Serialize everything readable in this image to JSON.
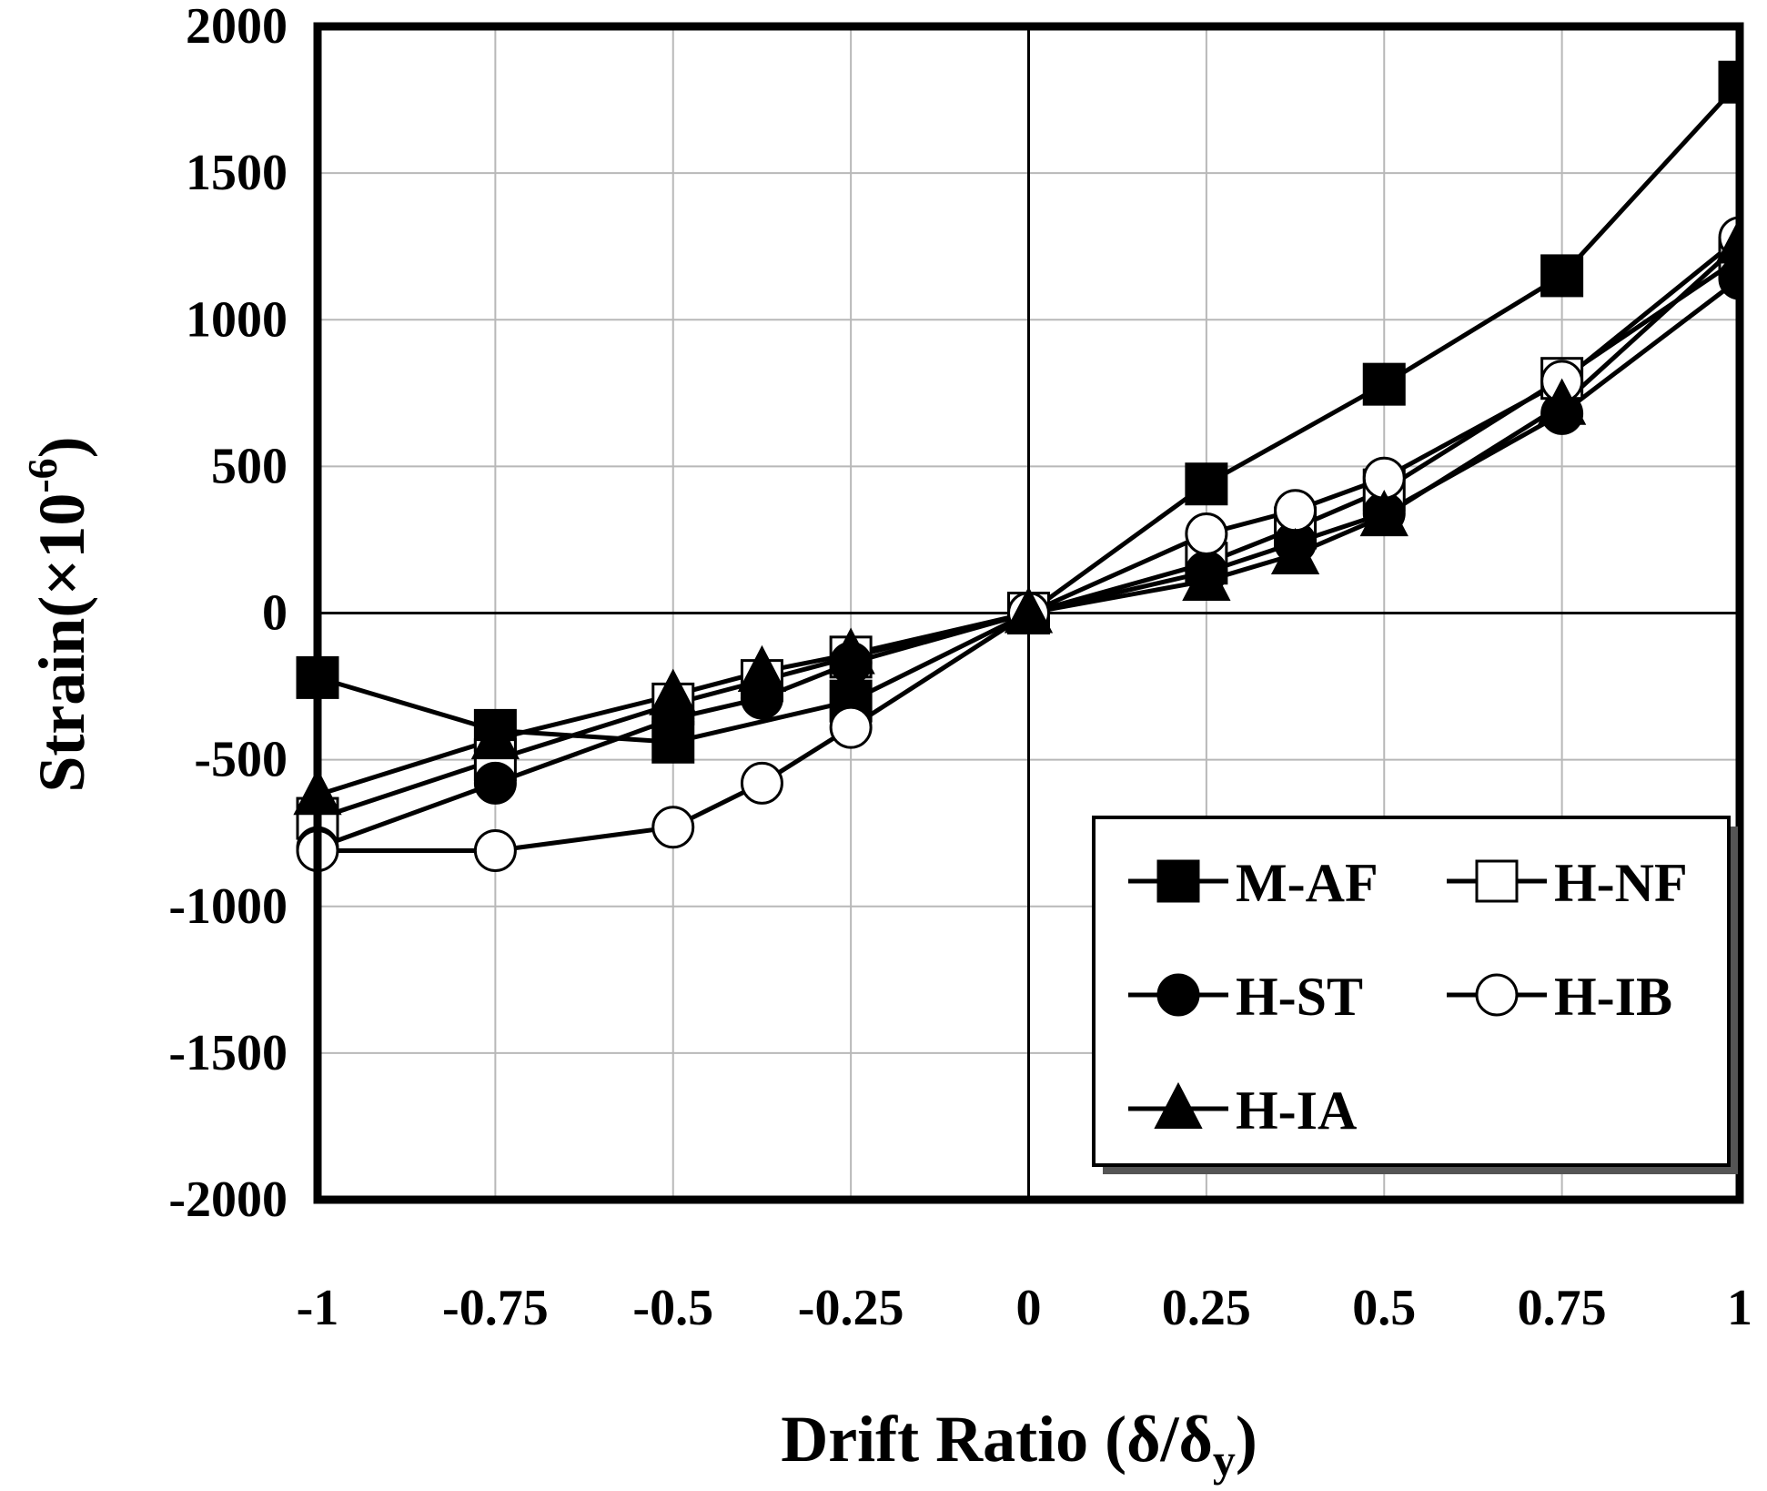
{
  "chart_data": {
    "type": "line",
    "title": "",
    "xlabel_main": "Drift Ratio (δ/δ",
    "xlabel_sub": "y",
    "xlabel_close": ")",
    "ylabel_main": "Strain(×10",
    "ylabel_sup": "-6",
    "ylabel_close": ")",
    "xlim": [
      -1,
      1
    ],
    "ylim": [
      -2000,
      2000
    ],
    "xticks": [
      -1,
      -0.75,
      -0.5,
      -0.25,
      0,
      0.25,
      0.5,
      0.75,
      1
    ],
    "xtick_labels": [
      "-1",
      "-0.75",
      "-0.5",
      "-0.25",
      "0",
      "0.25",
      "0.5",
      "0.75",
      "1"
    ],
    "yticks": [
      -2000,
      -1500,
      -1000,
      -500,
      0,
      500,
      1000,
      1500,
      2000
    ],
    "ytick_labels": [
      "-2000",
      "-1500",
      "-1000",
      "-500",
      "0",
      "500",
      "1000",
      "1500",
      "2000"
    ],
    "grid": true,
    "legend_position": "bottom-right",
    "series": [
      {
        "name": "M-AF",
        "marker": "square-filled",
        "x": [
          -1,
          -0.75,
          -0.5,
          -0.25,
          0,
          0.25,
          0.5,
          0.75,
          1
        ],
        "y": [
          -220,
          -400,
          -440,
          -300,
          0,
          440,
          780,
          1150,
          1810
        ]
      },
      {
        "name": "H-NF",
        "marker": "square-open",
        "x": [
          -1,
          -0.75,
          -0.5,
          -0.375,
          -0.25,
          0,
          0.25,
          0.375,
          0.5,
          0.75,
          1
        ],
        "y": [
          -700,
          -500,
          -310,
          -230,
          -150,
          0,
          170,
          290,
          420,
          800,
          1210
        ]
      },
      {
        "name": "H-ST",
        "marker": "circle-filled",
        "x": [
          -1,
          -0.75,
          -0.5,
          -0.375,
          -0.25,
          0,
          0.25,
          0.375,
          0.5,
          0.75,
          1
        ],
        "y": [
          -800,
          -580,
          -360,
          -290,
          -170,
          0,
          140,
          240,
          340,
          680,
          1140
        ]
      },
      {
        "name": "H-IB",
        "marker": "circle-open",
        "x": [
          -1,
          -0.75,
          -0.5,
          -0.375,
          -0.25,
          0,
          0.25,
          0.375,
          0.5,
          0.75,
          1
        ],
        "y": [
          -810,
          -810,
          -730,
          -580,
          -390,
          0,
          270,
          350,
          460,
          790,
          1280
        ]
      },
      {
        "name": "H-IA",
        "marker": "triangle-filled",
        "x": [
          -1,
          -0.75,
          -0.5,
          -0.375,
          -0.25,
          0,
          0.25,
          0.375,
          0.5,
          0.75,
          1
        ],
        "y": [
          -620,
          -430,
          -280,
          -200,
          -140,
          0,
          110,
          200,
          330,
          710,
          1260
        ]
      }
    ]
  }
}
